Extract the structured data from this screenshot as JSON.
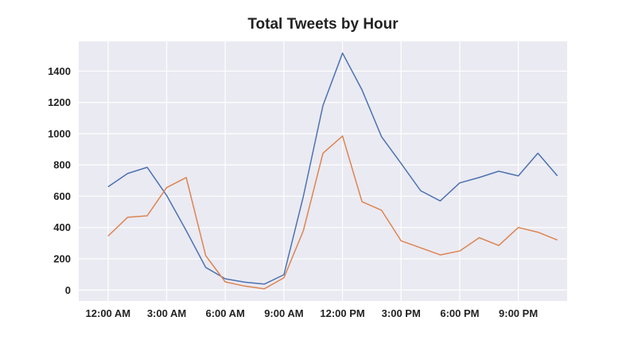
{
  "chart_data": {
    "type": "line",
    "title": "Total Tweets by Hour",
    "xlabel": "",
    "ylabel": "",
    "xlim": [
      -1.5,
      23.5
    ],
    "ylim": [
      -70,
      1590
    ],
    "x_ticks": [
      {
        "x": 0,
        "label": "12:00 AM"
      },
      {
        "x": 3,
        "label": "3:00 AM"
      },
      {
        "x": 6,
        "label": "6:00 AM"
      },
      {
        "x": 9,
        "label": "9:00 AM"
      },
      {
        "x": 12,
        "label": "12:00 PM"
      },
      {
        "x": 15,
        "label": "3:00 PM"
      },
      {
        "x": 18,
        "label": "6:00 PM"
      },
      {
        "x": 21,
        "label": "9:00 PM"
      }
    ],
    "y_ticks": [
      0,
      200,
      400,
      600,
      800,
      1000,
      1200,
      1400
    ],
    "grid": true,
    "legend": "none",
    "x": [
      0,
      1,
      2,
      3,
      4,
      5,
      6,
      7,
      8,
      9,
      10,
      11,
      12,
      13,
      14,
      15,
      16,
      17,
      18,
      19,
      20,
      21,
      22,
      23
    ],
    "series": [
      {
        "color": "#4c72b0",
        "values": [
          660,
          745,
          785,
          605,
          380,
          145,
          72,
          50,
          38,
          98,
          600,
          1180,
          1515,
          1280,
          980,
          810,
          635,
          570,
          685,
          720,
          760,
          730,
          875,
          730
        ]
      },
      {
        "color": "#dd8452",
        "values": [
          345,
          465,
          475,
          655,
          720,
          220,
          52,
          25,
          8,
          78,
          380,
          875,
          985,
          565,
          510,
          315,
          270,
          225,
          250,
          335,
          285,
          400,
          370,
          320
        ]
      }
    ]
  }
}
